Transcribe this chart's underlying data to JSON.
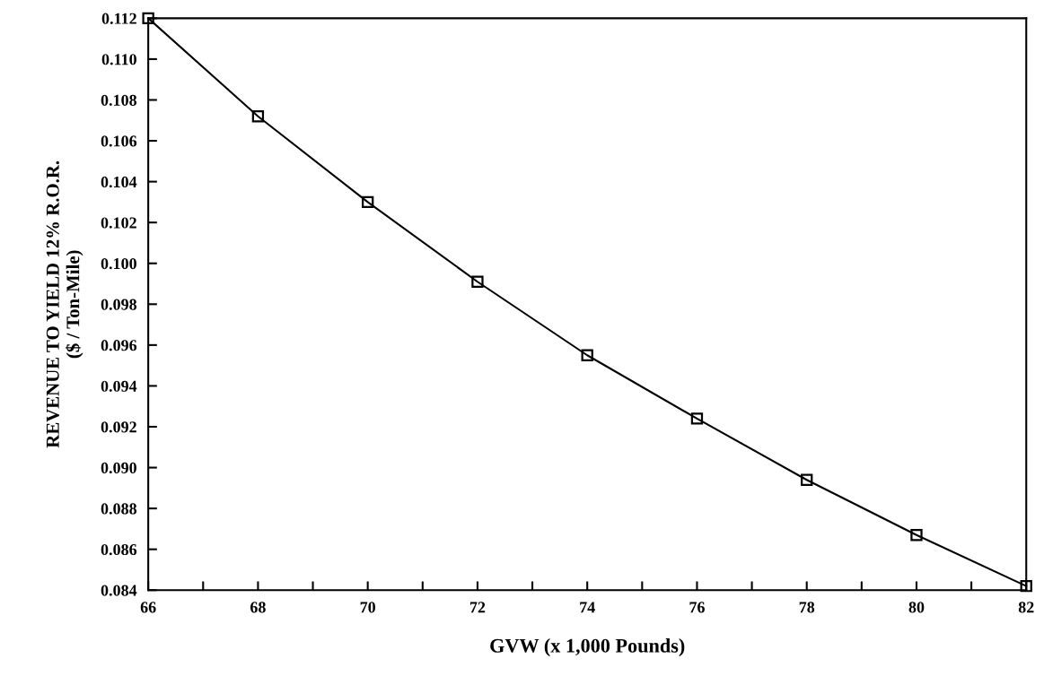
{
  "chart_data": {
    "type": "line",
    "xlabel": "GVW (x 1,000 Pounds)",
    "ylabel": "REVENUE TO YIELD 12% R.O.R.\n($ / Ton-Mile)",
    "x": [
      66,
      68,
      70,
      72,
      74,
      76,
      78,
      80,
      82
    ],
    "series": [
      {
        "color": "#000000",
        "values": [
          0.112,
          0.1072,
          0.103,
          0.0991,
          0.0955,
          0.0924,
          0.0894,
          0.0867,
          0.0842
        ]
      }
    ],
    "marker": "square",
    "line_style": "solid",
    "grid": false,
    "legend": false,
    "xlim": [
      66,
      82
    ],
    "ylim": [
      0.084,
      0.112
    ],
    "xticks": [
      66,
      {
        "value": 67,
        "label": null
      },
      68,
      {
        "value": 69,
        "label": null
      },
      70,
      {
        "value": 71,
        "label": null
      },
      72,
      {
        "value": 73,
        "label": null
      },
      74,
      {
        "value": 75,
        "label": null
      },
      76,
      {
        "value": 77,
        "label": null
      },
      78,
      {
        "value": 79,
        "label": null
      },
      80,
      {
        "value": 81,
        "label": null
      },
      82
    ],
    "yticks": [
      {
        "value": 0.084,
        "label": "0.084"
      },
      {
        "value": 0.086,
        "label": "0.086"
      },
      {
        "value": 0.088,
        "label": "0.088"
      },
      {
        "value": 0.09,
        "label": "0.090"
      },
      {
        "value": 0.092,
        "label": "0.092"
      },
      {
        "value": 0.094,
        "label": "0.094"
      },
      {
        "value": 0.096,
        "label": "0.096"
      },
      {
        "value": 0.098,
        "label": "0.098"
      },
      {
        "value": 0.1,
        "label": "0.100"
      },
      {
        "value": 0.102,
        "label": "0.102"
      },
      {
        "value": 0.104,
        "label": "0.104"
      },
      {
        "value": 0.106,
        "label": "0.106"
      },
      {
        "value": 0.108,
        "label": "0.108"
      },
      {
        "value": 0.11,
        "label": "0.110"
      },
      {
        "value": 0.112,
        "label": "0.112"
      }
    ]
  }
}
